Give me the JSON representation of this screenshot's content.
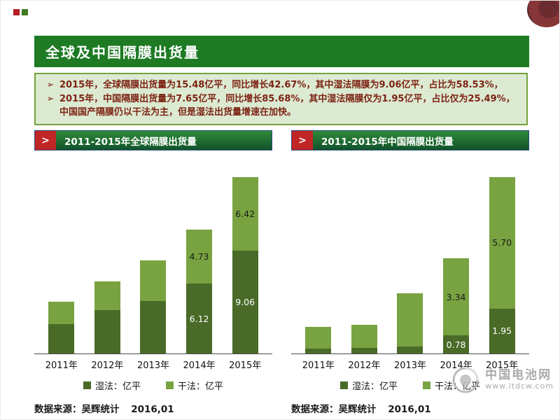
{
  "page": {
    "title": "全球及中国隔膜出货量",
    "bullet_glyph": "➢",
    "bullets": [
      "2015年，全球隔膜出货量为15.48亿平，同比增长42.67%，其中湿法隔膜为9.06亿平，占比为58.53%，",
      "2015年，中国隔膜出货量为7.65亿平，同比增长85.68%，其中湿法隔膜仅为1.95亿平，占比仅为25.49%，中国国产隔膜仍以干法为主，但是湿法出货量增速在加快。"
    ],
    "watermark": {
      "name": "中国电池网",
      "url": "www.itdcw.com"
    }
  },
  "icons": {
    "chevron_right": ">"
  },
  "colors": {
    "title_bar_green": "#1e7b24",
    "section_bar_green": "#1a6b30",
    "section_border_blue": "#2c4d86",
    "chip_red": "#c02626",
    "summary_bg": "#dcead2",
    "summary_border": "#76a23c",
    "summary_text": "#7d2313",
    "wet_green": "#4a6b28",
    "dry_green": "#78a340"
  },
  "chart_data": [
    {
      "type": "bar",
      "stacked": true,
      "title": "2011-2015年全球隔膜出货量",
      "categories": [
        "2011年",
        "2012年",
        "2013年",
        "2014年",
        "2015年"
      ],
      "series": [
        {
          "name": "湿法：亿平",
          "color": "#4a6b28",
          "label_color": "#ffffff",
          "values": [
            2.6,
            3.8,
            4.6,
            6.12,
            9.06
          ],
          "labels": [
            "",
            "",
            "",
            "6.12",
            "9.06"
          ]
        },
        {
          "name": "干法：亿平",
          "color": "#78a340",
          "label_color": "#1a1a1a",
          "values": [
            1.95,
            2.55,
            3.6,
            4.73,
            6.42
          ],
          "labels": [
            "",
            "",
            "",
            "4.73",
            "6.42"
          ]
        }
      ],
      "ylim": [
        0,
        15.48
      ],
      "grid": false,
      "legend_position": "bottom",
      "source": "数据来源：吴辉统计",
      "source_date": "2016,01"
    },
    {
      "type": "bar",
      "stacked": true,
      "title": "2011-2015年中国隔膜出货量",
      "categories": [
        "2011年",
        "2012年",
        "2013年",
        "2014年",
        "2015年"
      ],
      "series": [
        {
          "name": "湿法：亿平",
          "color": "#4a6b28",
          "label_color": "#ffffff",
          "values": [
            0.2,
            0.25,
            0.3,
            0.78,
            1.95
          ],
          "labels": [
            "",
            "",
            "",
            "0.78",
            "1.95"
          ]
        },
        {
          "name": "干法：亿平",
          "color": "#78a340",
          "label_color": "#1a1a1a",
          "values": [
            0.95,
            1.0,
            2.3,
            3.34,
            5.7
          ],
          "labels": [
            "",
            "",
            "",
            "3.34",
            "5.70"
          ]
        }
      ],
      "ylim": [
        0,
        7.65
      ],
      "grid": false,
      "legend_position": "bottom",
      "source": "数据来源：吴辉统计",
      "source_date": "2016,01"
    }
  ]
}
